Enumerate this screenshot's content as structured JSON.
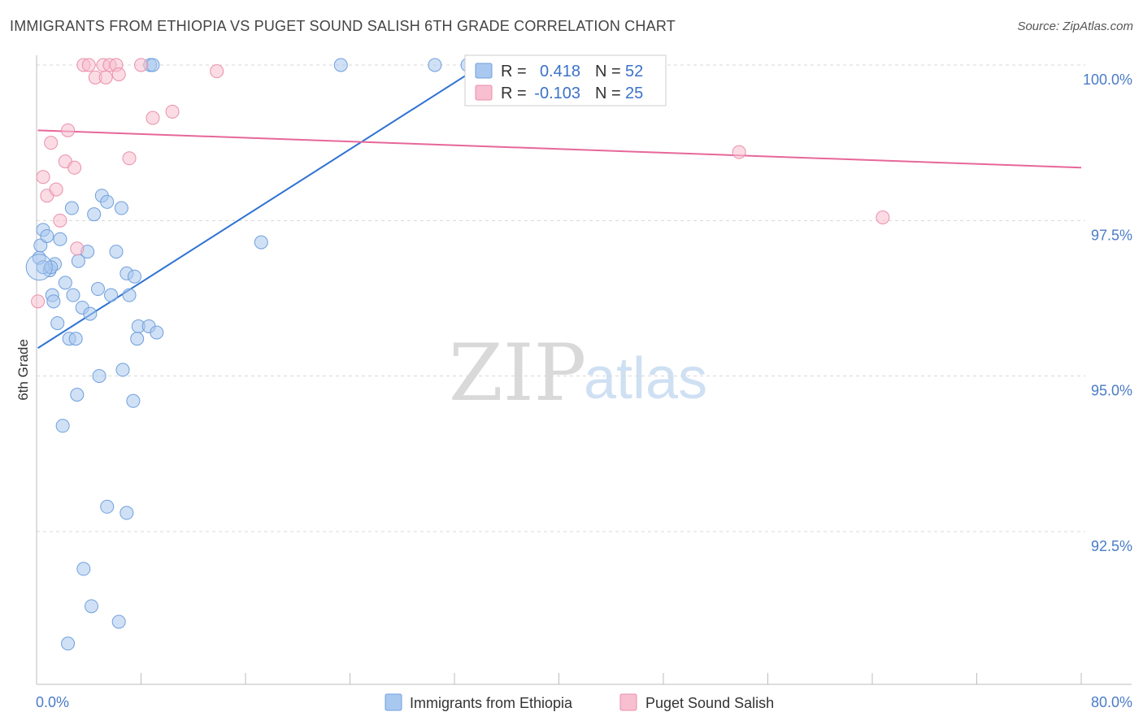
{
  "title": "IMMIGRANTS FROM ETHIOPIA VS PUGET SOUND SALISH 6TH GRADE CORRELATION CHART",
  "source": "Source: ZipAtlas.com",
  "watermark": {
    "zip": "ZIP",
    "atlas": "atlas"
  },
  "chart_data": {
    "type": "scatter",
    "title": "IMMIGRANTS FROM ETHIOPIA VS PUGET SOUND SALISH 6TH GRADE CORRELATION CHART",
    "xlabel": "",
    "ylabel": "6th Grade",
    "xlim": [
      0,
      80
    ],
    "ylim": [
      90.0,
      100.4
    ],
    "x_tick_labels": [
      {
        "value": 0,
        "label": "0.0%"
      },
      {
        "value": 80,
        "label": "80.0%"
      }
    ],
    "y_tick_labels": [
      {
        "value": 100.0,
        "label": "100.0%"
      },
      {
        "value": 97.5,
        "label": "97.5%"
      },
      {
        "value": 95.0,
        "label": "95.0%"
      },
      {
        "value": 92.5,
        "label": "92.5%"
      }
    ],
    "x_minor_ticks": [
      8,
      16,
      24,
      32,
      40,
      48,
      56,
      64,
      72,
      80
    ],
    "series": [
      {
        "name": "Immigrants from Ethiopia",
        "color": "#a9c8ef",
        "stroke": "#6f9fdc",
        "line_color": "#2e72d2",
        "R": "0.418",
        "N": "52",
        "trend": {
          "x0": 0.1,
          "y0": 95.45,
          "x1": 34.5,
          "y1": 100.05
        },
        "points": [
          [
            0.2,
            96.9
          ],
          [
            0.3,
            97.1
          ],
          [
            0.5,
            97.35
          ],
          [
            0.8,
            97.25
          ],
          [
            1.0,
            96.7
          ],
          [
            1.2,
            96.3
          ],
          [
            1.3,
            96.2
          ],
          [
            1.4,
            96.8
          ],
          [
            1.6,
            95.85
          ],
          [
            1.8,
            97.2
          ],
          [
            2.2,
            96.5
          ],
          [
            2.5,
            95.6
          ],
          [
            2.7,
            97.7
          ],
          [
            2.8,
            96.3
          ],
          [
            3.0,
            95.6
          ],
          [
            3.2,
            96.85
          ],
          [
            3.5,
            96.1
          ],
          [
            3.9,
            97.0
          ],
          [
            4.1,
            96.0
          ],
          [
            4.4,
            97.6
          ],
          [
            4.7,
            96.4
          ],
          [
            5.0,
            97.9
          ],
          [
            5.4,
            97.8
          ],
          [
            5.7,
            96.3
          ],
          [
            6.1,
            97.0
          ],
          [
            6.5,
            97.7
          ],
          [
            6.9,
            96.65
          ],
          [
            7.1,
            96.3
          ],
          [
            7.5,
            96.6
          ],
          [
            7.8,
            95.8
          ],
          [
            8.6,
            95.8
          ],
          [
            9.2,
            95.7
          ],
          [
            8.7,
            100.0
          ],
          [
            8.9,
            100.0
          ],
          [
            23.3,
            100.0
          ],
          [
            30.5,
            100.0
          ],
          [
            17.2,
            97.15
          ],
          [
            4.8,
            95.0
          ],
          [
            3.1,
            94.7
          ],
          [
            6.6,
            95.1
          ],
          [
            7.4,
            94.6
          ],
          [
            2.0,
            94.2
          ],
          [
            5.4,
            92.9
          ],
          [
            6.9,
            92.8
          ],
          [
            3.6,
            91.9
          ],
          [
            4.2,
            91.3
          ],
          [
            6.3,
            91.05
          ],
          [
            2.4,
            90.7
          ],
          [
            7.7,
            95.6
          ],
          [
            0.5,
            96.75
          ],
          [
            1.1,
            96.75
          ],
          [
            33.0,
            100.0
          ]
        ]
      },
      {
        "name": "Puget Sound Salish",
        "color": "#f7bfd0",
        "stroke": "#ea8fab",
        "line_color": "#e6679a",
        "R": "-0.103",
        "N": "25",
        "trend": {
          "x0": 0.1,
          "y0": 98.95,
          "x1": 80.0,
          "y1": 98.35
        },
        "points": [
          [
            0.1,
            96.2
          ],
          [
            0.5,
            98.2
          ],
          [
            0.8,
            97.9
          ],
          [
            1.1,
            98.75
          ],
          [
            1.5,
            98.0
          ],
          [
            1.8,
            97.5
          ],
          [
            2.2,
            98.45
          ],
          [
            2.4,
            98.95
          ],
          [
            2.9,
            98.35
          ],
          [
            3.1,
            97.05
          ],
          [
            3.6,
            100.0
          ],
          [
            4.0,
            100.0
          ],
          [
            4.5,
            99.8
          ],
          [
            5.1,
            100.0
          ],
          [
            5.3,
            99.8
          ],
          [
            5.6,
            100.0
          ],
          [
            6.1,
            100.0
          ],
          [
            6.3,
            99.85
          ],
          [
            7.1,
            98.5
          ],
          [
            8.0,
            100.0
          ],
          [
            8.9,
            99.15
          ],
          [
            10.4,
            99.25
          ],
          [
            13.8,
            99.9
          ],
          [
            53.8,
            98.6
          ],
          [
            64.8,
            97.55
          ]
        ]
      }
    ],
    "legend": {
      "placement": "bottom-center",
      "items": [
        "Immigrants from Ethiopia",
        "Puget Sound Salish"
      ]
    },
    "stats_box": {
      "placement": "top-center",
      "rows": [
        {
          "r_label": "R =",
          "r_value": "0.418",
          "n_label": "N =",
          "n_value": "52"
        },
        {
          "r_label": "R =",
          "r_value": "-0.103",
          "n_label": "N =",
          "n_value": "25"
        }
      ]
    }
  }
}
